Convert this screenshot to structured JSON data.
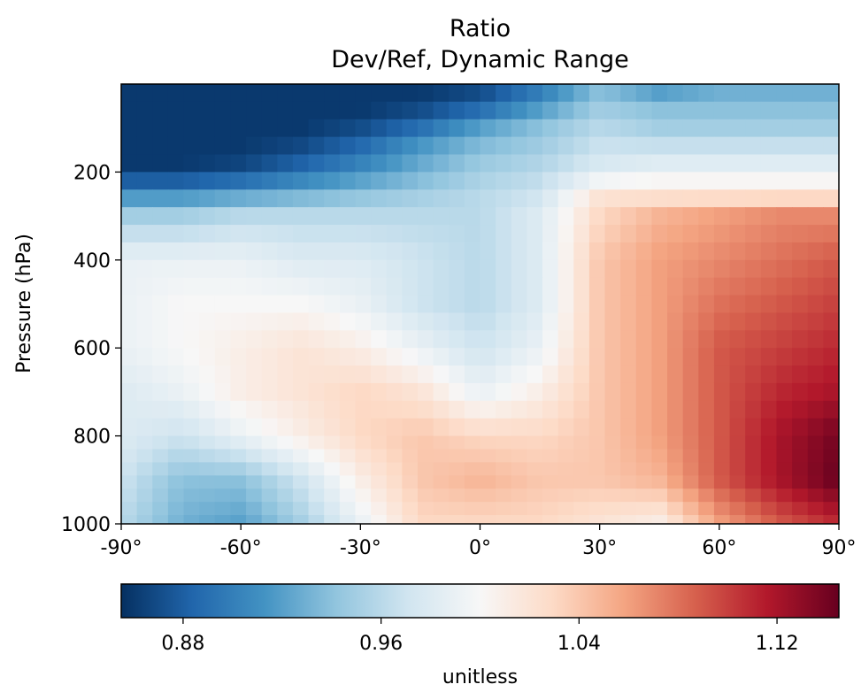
{
  "chart_data": {
    "type": "heatmap",
    "title": "Ratio",
    "subtitle": "Dev/Ref, Dynamic Range",
    "ylabel": "Pressure (hPa)",
    "xlabel": "",
    "xlim": [
      -90,
      90
    ],
    "ylim": [
      1000,
      0
    ],
    "xticks": [
      -90,
      -60,
      -30,
      0,
      30,
      60,
      90
    ],
    "xtick_labels": [
      "-90°",
      "-60°",
      "-30°",
      "0°",
      "30°",
      "60°",
      "90°"
    ],
    "yticks": [
      200,
      400,
      600,
      800,
      1000
    ],
    "ytick_labels": [
      "200",
      "400",
      "600",
      "800",
      "1000"
    ],
    "colormap": "RdBu_r",
    "colorbar": {
      "label": "unitless",
      "vmin": 0.855,
      "vmax": 1.145,
      "ticks": [
        0.88,
        0.96,
        1.04,
        1.12
      ],
      "tick_labels": [
        "0.88",
        "0.96",
        "1.04",
        "1.12"
      ],
      "colors": [
        "#053061",
        "#2166ac",
        "#4393c3",
        "#92c5de",
        "#d1e5f0",
        "#f7f7f7",
        "#fddbc7",
        "#f4a582",
        "#d6604d",
        "#b2182b",
        "#67001f"
      ]
    },
    "latitudes": [
      -90,
      -75,
      -60,
      -45,
      -30,
      -15,
      0,
      15,
      30,
      45,
      60,
      75,
      90
    ],
    "pressure_levels": [
      20,
      60,
      100,
      150,
      200,
      250,
      300,
      400,
      500,
      600,
      700,
      800,
      900,
      1000
    ],
    "values": [
      [
        0.86,
        0.86,
        0.86,
        0.86,
        0.86,
        0.86,
        0.87,
        0.9,
        0.94,
        0.92,
        0.93,
        0.93,
        0.93
      ],
      [
        0.86,
        0.86,
        0.86,
        0.86,
        0.86,
        0.87,
        0.89,
        0.92,
        0.95,
        0.94,
        0.94,
        0.94,
        0.94
      ],
      [
        0.86,
        0.86,
        0.86,
        0.86,
        0.87,
        0.89,
        0.92,
        0.94,
        0.96,
        0.95,
        0.95,
        0.95,
        0.95
      ],
      [
        0.86,
        0.86,
        0.86,
        0.87,
        0.89,
        0.92,
        0.94,
        0.95,
        0.97,
        0.97,
        0.97,
        0.97,
        0.97
      ],
      [
        0.86,
        0.86,
        0.87,
        0.89,
        0.91,
        0.93,
        0.95,
        0.96,
        0.98,
        0.99,
        0.99,
        0.99,
        0.99
      ],
      [
        0.91,
        0.91,
        0.92,
        0.93,
        0.94,
        0.95,
        0.96,
        0.97,
        1.02,
        1.02,
        1.02,
        1.02,
        1.02
      ],
      [
        0.95,
        0.95,
        0.96,
        0.96,
        0.96,
        0.96,
        0.96,
        0.98,
        1.03,
        1.05,
        1.06,
        1.07,
        1.07
      ],
      [
        0.99,
        0.99,
        0.99,
        0.98,
        0.98,
        0.97,
        0.96,
        0.98,
        1.04,
        1.06,
        1.07,
        1.08,
        1.09
      ],
      [
        0.99,
        1.0,
        1.0,
        1.0,
        0.99,
        0.97,
        0.96,
        0.98,
        1.04,
        1.06,
        1.08,
        1.09,
        1.1
      ],
      [
        0.99,
        1.0,
        1.01,
        1.02,
        1.01,
        0.99,
        0.97,
        0.99,
        1.04,
        1.06,
        1.09,
        1.1,
        1.11
      ],
      [
        0.98,
        0.99,
        1.01,
        1.02,
        1.03,
        1.02,
        0.99,
        1.01,
        1.04,
        1.06,
        1.09,
        1.11,
        1.12
      ],
      [
        0.98,
        0.97,
        0.99,
        1.01,
        1.03,
        1.04,
        1.03,
        1.03,
        1.04,
        1.06,
        1.09,
        1.12,
        1.14
      ],
      [
        0.97,
        0.94,
        0.94,
        0.97,
        1.01,
        1.04,
        1.05,
        1.04,
        1.04,
        1.05,
        1.09,
        1.12,
        1.145
      ],
      [
        0.96,
        0.93,
        0.92,
        0.95,
        0.99,
        1.03,
        1.03,
        1.03,
        1.02,
        1.01,
        1.06,
        1.09,
        1.11
      ]
    ]
  }
}
